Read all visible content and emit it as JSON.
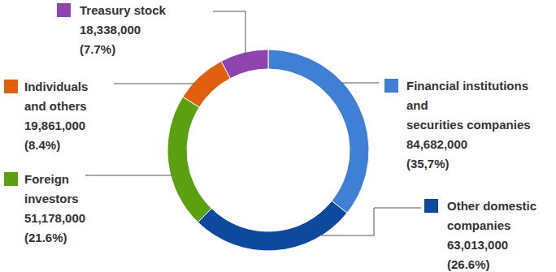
{
  "chart_data": {
    "type": "pie",
    "categories": [
      "Financial institutions\nand\nsecurities companies",
      "Other domestic\ncompanies",
      "Foreign\ninvestors",
      "Individuals\nand others",
      "Treasury stock"
    ],
    "values": [
      84682000,
      63013000,
      51178000,
      19861000,
      18338000
    ],
    "value_labels": [
      "84,682,000",
      "63,013,000",
      "51,178,000",
      "19,861,000",
      "18,338,000"
    ],
    "percent_labels": [
      "(35,7%)",
      "(26.6%)",
      "(21.6%)",
      "(8.4%)",
      "(7.7%)"
    ],
    "colors": [
      "#3f7fd6",
      "#0d4a9e",
      "#5aa010",
      "#e0600f",
      "#8e44ad"
    ],
    "data_labels": true
  }
}
